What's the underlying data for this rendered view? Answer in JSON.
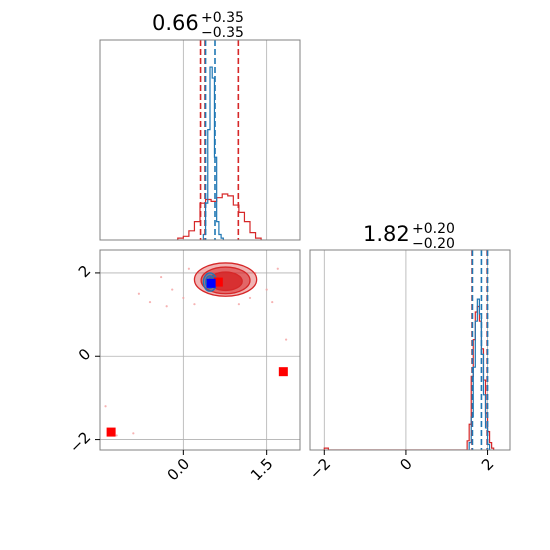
{
  "chart_data": {
    "type": "corner",
    "parameters": 2,
    "colors": {
      "red": "#d62728",
      "blue": "#1f77b4",
      "truth_marker": "#ff0000",
      "blue_marker": "#0000ff",
      "grid": "#b0b0b0",
      "axes": "#808080"
    },
    "titles": [
      {
        "value": "0.66",
        "plus": "+0.35",
        "minus": "−0.35"
      },
      {
        "value": "1.82",
        "plus": "+0.20",
        "minus": "−0.20"
      }
    ],
    "x_ticks": [
      {
        "value": 0.0,
        "label": "0.0"
      },
      {
        "value": 1.5,
        "label": "1.5"
      }
    ],
    "y_ticks": [
      {
        "value": -2,
        "label": "−2"
      },
      {
        "value": 0,
        "label": "0"
      },
      {
        "value": 2,
        "label": "2"
      }
    ],
    "x2_ticks": [
      {
        "value": -2,
        "label": "−2"
      },
      {
        "value": 0,
        "label": "0"
      },
      {
        "value": 2,
        "label": "2"
      }
    ],
    "x_range": [
      -1.5,
      2.1
    ],
    "y_range": [
      -2.25,
      2.55
    ],
    "x2_range": [
      -2.35,
      2.55
    ],
    "hist1": {
      "red_quantiles": [
        0.31,
        0.39,
        0.99
      ],
      "blue_quantiles": [
        0.4,
        0.57
      ],
      "red_bin_edges": [
        -0.1,
        0.0,
        0.1,
        0.2,
        0.3,
        0.4,
        0.5,
        0.6,
        0.7,
        0.8,
        0.9,
        1.0,
        1.1,
        1.2,
        1.3,
        1.4
      ],
      "red_counts": [
        1,
        2,
        5,
        10,
        20,
        22,
        21,
        23,
        25,
        24,
        19,
        15,
        10,
        4,
        1
      ],
      "blue_bin_edges": [
        0.36,
        0.4,
        0.44,
        0.48,
        0.52,
        0.56,
        0.6,
        0.64,
        0.68,
        0.72
      ],
      "blue_counts": [
        3,
        20,
        60,
        94,
        88,
        45,
        10,
        3,
        1
      ],
      "y_max": 100
    },
    "hist2": {
      "red_quantiles": [
        1.62,
        1.99
      ],
      "blue_quantiles": [
        1.63,
        1.85,
        2.0
      ],
      "red_bin_edges": [
        -2.0,
        -1.9,
        1.5,
        1.55,
        1.6,
        1.65,
        1.7,
        1.75,
        1.8,
        1.85,
        1.9,
        1.95,
        2.0,
        2.05,
        2.1,
        2.15
      ],
      "red_counts": [
        1,
        0,
        5,
        14,
        40,
        60,
        75,
        78,
        70,
        55,
        38,
        20,
        10,
        4,
        1
      ],
      "blue_bin_edges": [
        1.55,
        1.6,
        1.65,
        1.7,
        1.75,
        1.8,
        1.85,
        1.9,
        1.95,
        2.0,
        2.05
      ],
      "blue_counts": [
        4,
        18,
        45,
        70,
        82,
        74,
        52,
        30,
        12,
        3
      ],
      "y_max": 100
    },
    "scatter_2d": {
      "red_contours": [
        {
          "cx": 0.76,
          "cy": 1.84,
          "rx": 0.56,
          "ry": 0.4,
          "opacity": 0.35
        },
        {
          "cx": 0.76,
          "cy": 1.82,
          "rx": 0.44,
          "ry": 0.32,
          "opacity": 0.55
        },
        {
          "cx": 0.76,
          "cy": 1.8,
          "rx": 0.3,
          "ry": 0.22,
          "opacity": 0.85
        }
      ],
      "blue_contours": [
        {
          "cx": 0.48,
          "cy": 1.78,
          "rx": 0.12,
          "ry": 0.22,
          "opacity": 0.35
        },
        {
          "cx": 0.48,
          "cy": 1.78,
          "rx": 0.08,
          "ry": 0.15,
          "opacity": 0.55
        }
      ],
      "red_markers": [
        {
          "x": -1.3,
          "y": -1.82
        },
        {
          "x": 1.8,
          "y": -0.37
        },
        {
          "x": 0.63,
          "y": 1.78
        }
      ],
      "blue_markers": [
        {
          "x": 0.5,
          "y": 1.75
        }
      ],
      "scatter_points": [
        {
          "x": -1.4,
          "y": -1.2
        },
        {
          "x": -1.2,
          "y": -1.9
        },
        {
          "x": -0.9,
          "y": -1.85
        },
        {
          "x": -0.8,
          "y": 1.5
        },
        {
          "x": -0.6,
          "y": 1.3
        },
        {
          "x": -0.4,
          "y": 1.9
        },
        {
          "x": -0.2,
          "y": 1.6
        },
        {
          "x": 0.0,
          "y": 1.4
        },
        {
          "x": 0.1,
          "y": 2.1
        },
        {
          "x": 1.2,
          "y": 1.4
        },
        {
          "x": 1.3,
          "y": 2.0
        },
        {
          "x": 1.5,
          "y": 1.6
        },
        {
          "x": 1.7,
          "y": 2.1
        },
        {
          "x": 1.85,
          "y": 0.4
        },
        {
          "x": 1.6,
          "y": 1.3
        },
        {
          "x": -0.3,
          "y": 1.2
        },
        {
          "x": 0.2,
          "y": 1.25
        },
        {
          "x": 1.0,
          "y": 1.25
        }
      ]
    }
  }
}
